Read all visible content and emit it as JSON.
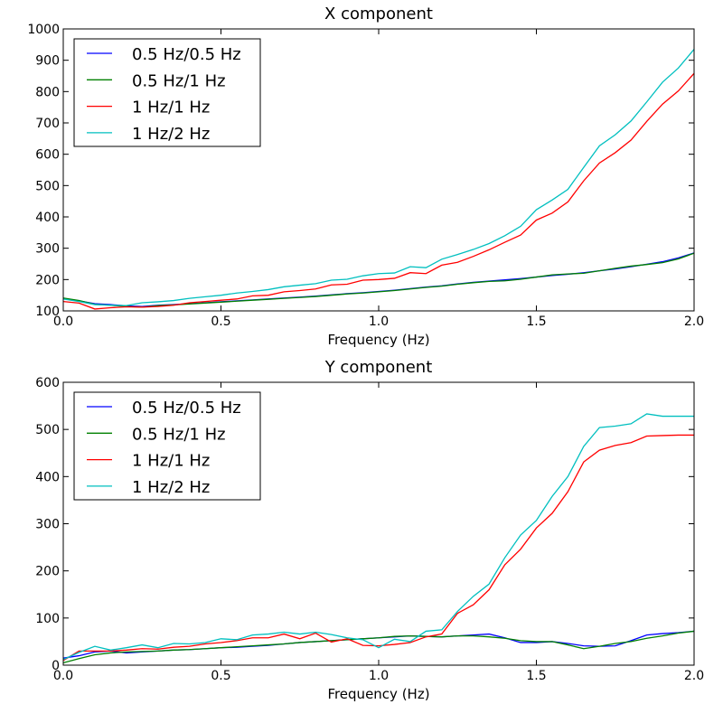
{
  "colors": {
    "0.5 Hz/0.5 Hz": "#0000ff",
    "0.5 Hz/1 Hz": "#008000",
    "1 Hz/1 Hz": "#ff0000",
    "1 Hz/2 Hz": "#00bfbf"
  },
  "chart_data": [
    {
      "type": "line",
      "title": "X component",
      "xlabel": "Frequency (Hz)",
      "ylabel": "",
      "xlim": [
        0.0,
        2.0
      ],
      "ylim": [
        100,
        1000
      ],
      "xticks": [
        "0.0",
        "0.5",
        "1.0",
        "1.5",
        "2.0"
      ],
      "yticks": [
        "100",
        "200",
        "300",
        "400",
        "500",
        "600",
        "700",
        "800",
        "900",
        "1000"
      ],
      "grid": false,
      "legend_placement": "top-left",
      "x": [
        0.0,
        0.05,
        0.1,
        0.15,
        0.2,
        0.25,
        0.3,
        0.35,
        0.4,
        0.45,
        0.5,
        0.55,
        0.6,
        0.65,
        0.7,
        0.75,
        0.8,
        0.85,
        0.9,
        0.95,
        1.0,
        1.05,
        1.1,
        1.15,
        1.2,
        1.25,
        1.3,
        1.35,
        1.4,
        1.45,
        1.5,
        1.55,
        1.6,
        1.65,
        1.7,
        1.75,
        1.8,
        1.85,
        1.9,
        1.95,
        2.0
      ],
      "series": [
        {
          "name": "0.5 Hz/0.5 Hz",
          "values": [
            140,
            132,
            123,
            120,
            116,
            114,
            118,
            120,
            123,
            126,
            129,
            132,
            135,
            138,
            141,
            144,
            147,
            151,
            155,
            158,
            162,
            166,
            171,
            176,
            180,
            186,
            191,
            195,
            199,
            203,
            208,
            213,
            217,
            222,
            228,
            234,
            241,
            249,
            257,
            269,
            285
          ]
        },
        {
          "name": "0.5 Hz/1 Hz",
          "values": [
            141,
            133,
            121,
            118,
            114,
            112,
            117,
            119,
            122,
            125,
            128,
            131,
            134,
            137,
            140,
            143,
            146,
            150,
            154,
            157,
            161,
            165,
            170,
            175,
            179,
            185,
            190,
            194,
            196,
            201,
            208,
            215,
            218,
            220,
            228,
            236,
            243,
            248,
            254,
            266,
            284
          ]
        },
        {
          "name": "1 Hz/1 Hz",
          "values": [
            130,
            125,
            106,
            110,
            113,
            112,
            114,
            118,
            126,
            130,
            134,
            138,
            148,
            150,
            161,
            165,
            170,
            183,
            185,
            198,
            200,
            204,
            222,
            219,
            246,
            255,
            274,
            295,
            319,
            342,
            390,
            412,
            448,
            515,
            572,
            605,
            645,
            705,
            760,
            802,
            858
          ]
        },
        {
          "name": "1 Hz/2 Hz",
          "values": [
            138,
            130,
            120,
            118,
            117,
            126,
            129,
            133,
            140,
            145,
            150,
            157,
            162,
            168,
            177,
            182,
            187,
            198,
            201,
            212,
            219,
            221,
            241,
            238,
            265,
            280,
            296,
            315,
            340,
            370,
            423,
            454,
            488,
            558,
            627,
            662,
            706,
            767,
            830,
            875,
            935
          ]
        }
      ]
    },
    {
      "type": "line",
      "title": "Y component",
      "xlabel": "Frequency (Hz)",
      "ylabel": "",
      "xlim": [
        0.0,
        2.0
      ],
      "ylim": [
        0,
        600
      ],
      "xticks": [
        "0.0",
        "0.5",
        "1.0",
        "1.5",
        "2.0"
      ],
      "yticks": [
        "0",
        "100",
        "200",
        "300",
        "400",
        "500",
        "600"
      ],
      "grid": false,
      "legend_placement": "top-left",
      "x": [
        0.0,
        0.05,
        0.1,
        0.15,
        0.2,
        0.25,
        0.3,
        0.35,
        0.4,
        0.45,
        0.5,
        0.55,
        0.6,
        0.65,
        0.7,
        0.75,
        0.8,
        0.85,
        0.9,
        0.95,
        1.0,
        1.05,
        1.1,
        1.15,
        1.2,
        1.25,
        1.3,
        1.35,
        1.4,
        1.45,
        1.5,
        1.55,
        1.6,
        1.65,
        1.7,
        1.75,
        1.8,
        1.85,
        1.9,
        1.95,
        2.0
      ],
      "series": [
        {
          "name": "0.5 Hz/0.5 Hz",
          "values": [
            15,
            20,
            28,
            30,
            26,
            28,
            30,
            32,
            33,
            35,
            37,
            38,
            40,
            42,
            45,
            48,
            50,
            52,
            54,
            56,
            58,
            60,
            62,
            61,
            60,
            62,
            64,
            66,
            58,
            48,
            48,
            50,
            46,
            41,
            40,
            41,
            52,
            64,
            67,
            69,
            72
          ]
        },
        {
          "name": "0.5 Hz/1 Hz",
          "values": [
            5,
            14,
            22,
            26,
            28,
            29,
            30,
            32,
            33,
            35,
            37,
            39,
            41,
            43,
            45,
            48,
            50,
            52,
            54,
            56,
            58,
            61,
            62,
            61,
            60,
            62,
            62,
            60,
            57,
            52,
            50,
            50,
            43,
            35,
            40,
            46,
            50,
            57,
            62,
            68,
            72
          ]
        },
        {
          "name": "1 Hz/1 Hz",
          "values": [
            10,
            30,
            30,
            30,
            32,
            35,
            34,
            38,
            40,
            45,
            48,
            52,
            58,
            58,
            66,
            56,
            68,
            49,
            56,
            42,
            41,
            44,
            48,
            60,
            66,
            110,
            128,
            160,
            213,
            246,
            291,
            322,
            368,
            431,
            456,
            466,
            472,
            486,
            487,
            488,
            488
          ]
        },
        {
          "name": "1 Hz/2 Hz",
          "values": [
            12,
            27,
            40,
            32,
            37,
            43,
            37,
            46,
            45,
            48,
            56,
            54,
            64,
            66,
            70,
            66,
            70,
            65,
            58,
            54,
            37,
            55,
            50,
            72,
            75,
            114,
            146,
            172,
            228,
            276,
            307,
            358,
            400,
            464,
            504,
            507,
            512,
            533,
            528,
            528,
            528
          ]
        }
      ]
    }
  ]
}
